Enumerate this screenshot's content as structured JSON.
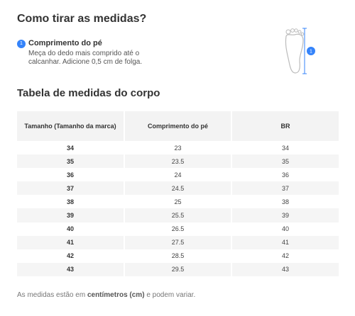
{
  "header": {
    "title": "Como tirar as medidas?"
  },
  "steps": [
    {
      "number": "1",
      "title": "Comprimento do pé",
      "description": "Meça do dedo mais comprido até o calcanhar. Adicione 0,5 cm de folga."
    }
  ],
  "table": {
    "title": "Tabela de medidas do corpo",
    "columns": [
      "Tamanho (Tamanho da marca)",
      "Comprimento do pé",
      "BR"
    ],
    "rows": [
      [
        "34",
        "23",
        "34"
      ],
      [
        "35",
        "23.5",
        "35"
      ],
      [
        "36",
        "24",
        "36"
      ],
      [
        "37",
        "24.5",
        "37"
      ],
      [
        "38",
        "25",
        "38"
      ],
      [
        "39",
        "25.5",
        "39"
      ],
      [
        "40",
        "26.5",
        "40"
      ],
      [
        "41",
        "27.5",
        "41"
      ],
      [
        "42",
        "28.5",
        "42"
      ],
      [
        "43",
        "29.5",
        "43"
      ]
    ]
  },
  "footer": {
    "before": "As medidas estão em",
    "bold": "centímetros (cm)",
    "after": "e podem variar."
  }
}
